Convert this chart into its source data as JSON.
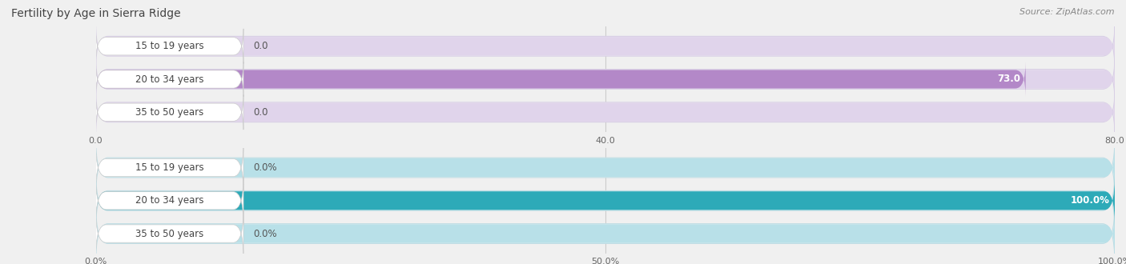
{
  "title": "Fertility by Age in Sierra Ridge",
  "source": "Source: ZipAtlas.com",
  "top_chart": {
    "categories": [
      "15 to 19 years",
      "20 to 34 years",
      "35 to 50 years"
    ],
    "values": [
      0.0,
      73.0,
      0.0
    ],
    "max_val": 80.0,
    "xticks": [
      0.0,
      40.0,
      80.0
    ],
    "bar_color": "#b388c8",
    "bar_bg_color": "#e0d4eb",
    "container_color": "#ede8f2",
    "container_edge": "#d8cfe5"
  },
  "bottom_chart": {
    "categories": [
      "15 to 19 years",
      "20 to 34 years",
      "35 to 50 years"
    ],
    "values": [
      0.0,
      100.0,
      0.0
    ],
    "max_val": 100.0,
    "xticks": [
      0.0,
      50.0,
      100.0
    ],
    "bar_color": "#2daab8",
    "bar_bg_color": "#b8e0e8",
    "container_color": "#ddf0f3",
    "container_edge": "#c0dde4"
  },
  "bg_color": "#f0f0f0",
  "title_fontsize": 10,
  "label_fontsize": 8.5,
  "tick_fontsize": 8,
  "source_fontsize": 8,
  "value_label_color_inside": "#ffffff",
  "value_label_color_outside": "#555555"
}
